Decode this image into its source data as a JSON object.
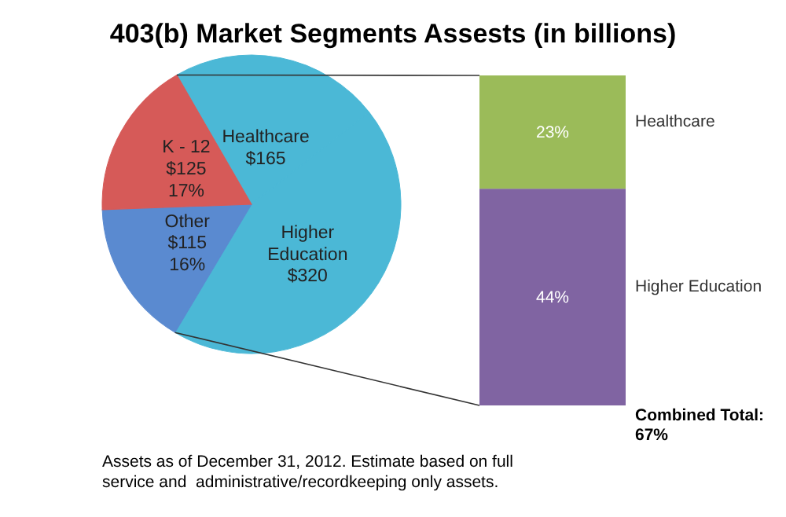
{
  "chart_data": [
    {
      "type": "pie",
      "title": "403(b) Market Segments Assests (in billions)",
      "categories": [
        "Healthcare",
        "Higher Education",
        "Other",
        "K - 12"
      ],
      "values": [
        165,
        320,
        115,
        125
      ],
      "colors": [
        "#4bb8d6",
        "#4bb8d6",
        "#5a8ad0",
        "#d65a58"
      ],
      "value_labels": [
        "$165",
        "$320",
        "$115\n16%",
        "$125\n17%"
      ],
      "annotations": [
        "Assets as of December 31, 2012. Estimate based on full\nservice and  administrative/recordkeeping only assets."
      ]
    },
    {
      "type": "bar",
      "stacked": true,
      "categories": [
        null
      ],
      "ylim": [
        0,
        67
      ],
      "tick_labels": false,
      "series": [
        {
          "name": "Higher Education",
          "color": "#8064a2",
          "values": [
            44
          ],
          "value_labels": [
            "44%"
          ]
        },
        {
          "name": "Healthcare",
          "color": "#9bbb59",
          "values": [
            23
          ],
          "value_labels": [
            "23%"
          ]
        }
      ],
      "totals": [
        "67%"
      ],
      "annotations": [
        "Combined Total:"
      ]
    }
  ]
}
